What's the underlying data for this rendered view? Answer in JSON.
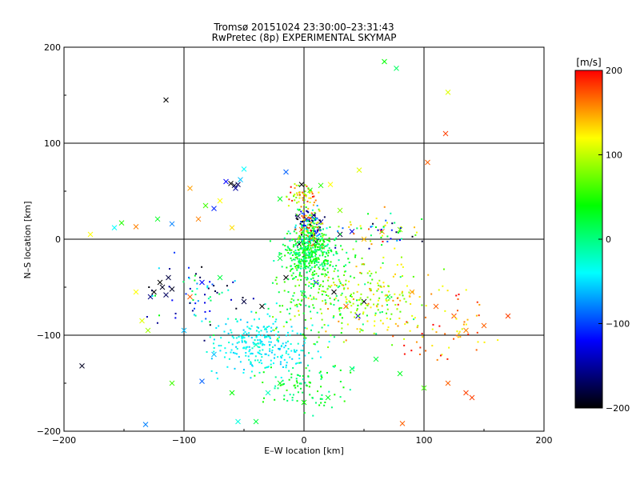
{
  "chart_data": {
    "type": "scatter",
    "title": "Tromsø 20151024 23:30:00–23:31:43",
    "subtitle": "RwPretec (8p) EXPERIMENTAL SKYMAP",
    "xlabel": "E–W location [km]",
    "ylabel": "N–S location [km]",
    "xlim": [
      -200,
      200
    ],
    "ylim": [
      -200,
      200
    ],
    "xticks": [
      -200,
      -100,
      0,
      100,
      200
    ],
    "yticks": [
      -200,
      -100,
      0,
      100,
      200
    ],
    "grid": true,
    "colorbar": {
      "label": "[m/s]",
      "min": -200,
      "max": 200,
      "ticks": [
        200,
        100,
        0,
        -100,
        -200
      ],
      "colors": [
        "#000000",
        "#0000ff",
        "#00ffff",
        "#00ff00",
        "#ffff00",
        "#ff0000"
      ]
    },
    "series": [
      {
        "marker": "x",
        "points": [
          [
            -115,
            145,
            -200
          ],
          [
            -185,
            -132,
            -190
          ],
          [
            -132,
            -193,
            -80
          ],
          [
            67,
            185,
            40
          ],
          [
            77,
            178,
            10
          ],
          [
            120,
            153,
            110
          ],
          [
            118,
            110,
            180
          ],
          [
            103,
            80,
            170
          ],
          [
            -61,
            58,
            -200
          ],
          [
            -58,
            56,
            -190
          ],
          [
            -55,
            57,
            -170
          ],
          [
            -65,
            60,
            -120
          ],
          [
            -53,
            62,
            -60
          ],
          [
            -57,
            53,
            -150
          ],
          [
            -50,
            73,
            -40
          ],
          [
            -120,
            -45,
            -200
          ],
          [
            -118,
            -50,
            -190
          ],
          [
            -125,
            -55,
            -200
          ],
          [
            -113,
            -40,
            -180
          ],
          [
            -115,
            -58,
            -170
          ],
          [
            -110,
            -52,
            -190
          ],
          [
            -128,
            -60,
            -160
          ],
          [
            -178,
            5,
            120
          ],
          [
            -158,
            12,
            -40
          ],
          [
            -152,
            17,
            50
          ],
          [
            -140,
            13,
            160
          ],
          [
            -122,
            21,
            30
          ],
          [
            -110,
            16,
            -80
          ],
          [
            -88,
            21,
            160
          ],
          [
            -75,
            32,
            -110
          ],
          [
            -70,
            40,
            120
          ],
          [
            -95,
            53,
            150
          ],
          [
            -82,
            35,
            60
          ],
          [
            -60,
            12,
            130
          ],
          [
            -15,
            70,
            -90
          ],
          [
            -2,
            57,
            -200
          ],
          [
            5,
            51,
            40
          ],
          [
            14,
            56,
            50
          ],
          [
            -20,
            42,
            30
          ],
          [
            22,
            57,
            120
          ],
          [
            46,
            72,
            110
          ],
          [
            30,
            30,
            80
          ],
          [
            -5,
            24,
            -180
          ],
          [
            2,
            21,
            -200
          ],
          [
            8,
            25,
            -170
          ],
          [
            14,
            18,
            -150
          ],
          [
            -2,
            10,
            160
          ],
          [
            6,
            5,
            20
          ],
          [
            10,
            -3,
            -200
          ],
          [
            -4,
            -5,
            -190
          ],
          [
            2,
            -10,
            -40
          ],
          [
            15,
            -8,
            150
          ],
          [
            30,
            5,
            -180
          ],
          [
            40,
            8,
            -130
          ],
          [
            50,
            0,
            140
          ],
          [
            65,
            8,
            160
          ],
          [
            80,
            10,
            80
          ],
          [
            -20,
            -20,
            20
          ],
          [
            -15,
            -40,
            -200
          ],
          [
            10,
            -45,
            -120
          ],
          [
            25,
            -55,
            -200
          ],
          [
            35,
            -70,
            170
          ],
          [
            50,
            -65,
            -200
          ],
          [
            45,
            -80,
            -150
          ],
          [
            70,
            -60,
            20
          ],
          [
            90,
            -55,
            150
          ],
          [
            110,
            -70,
            170
          ],
          [
            125,
            -80,
            180
          ],
          [
            135,
            -95,
            160
          ],
          [
            150,
            -90,
            170
          ],
          [
            170,
            -80,
            180
          ],
          [
            -35,
            -70,
            -200
          ],
          [
            -50,
            -65,
            -180
          ],
          [
            -70,
            -40,
            20
          ],
          [
            -85,
            -45,
            -120
          ],
          [
            -95,
            -60,
            170
          ],
          [
            -140,
            -55,
            120
          ],
          [
            -135,
            -85,
            110
          ],
          [
            -130,
            -95,
            90
          ],
          [
            -100,
            -95,
            -60
          ],
          [
            -40,
            -110,
            -10
          ],
          [
            -20,
            -150,
            30
          ],
          [
            -30,
            -160,
            -20
          ],
          [
            0,
            -170,
            40
          ],
          [
            20,
            -165,
            30
          ],
          [
            40,
            -135,
            10
          ],
          [
            60,
            -125,
            20
          ],
          [
            80,
            -140,
            30
          ],
          [
            100,
            -155,
            60
          ],
          [
            120,
            -150,
            170
          ],
          [
            135,
            -160,
            180
          ],
          [
            140,
            -165,
            180
          ],
          [
            82,
            -192,
            170
          ],
          [
            -55,
            -190,
            -30
          ],
          [
            -75,
            -120,
            -60
          ],
          [
            -85,
            -148,
            -90
          ],
          [
            -110,
            -150,
            60
          ],
          [
            -60,
            -160,
            40
          ],
          [
            -40,
            -190,
            20
          ]
        ]
      },
      {
        "marker": "dot",
        "count_note": "dense cloud",
        "points": []
      }
    ]
  }
}
